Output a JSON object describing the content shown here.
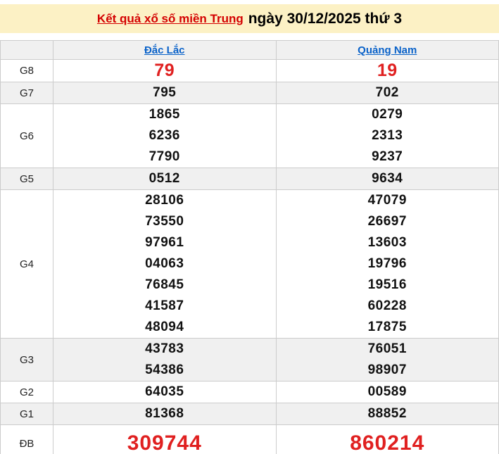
{
  "banner": {
    "link_text": "Kết quả xổ số miền Trung",
    "date_text": "ngày 30/12/2025 thứ 3"
  },
  "table": {
    "columns": [
      "Đắc Lắc",
      "Quảng Nam"
    ],
    "rows": [
      {
        "label": "G8",
        "emphasis": "high",
        "values": [
          [
            "79"
          ],
          [
            "19"
          ]
        ]
      },
      {
        "label": "G7",
        "emphasis": "normal",
        "values": [
          [
            "795"
          ],
          [
            "702"
          ]
        ]
      },
      {
        "label": "G6",
        "emphasis": "normal",
        "values": [
          [
            "1865",
            "6236",
            "7790"
          ],
          [
            "0279",
            "2313",
            "9237"
          ]
        ]
      },
      {
        "label": "G5",
        "emphasis": "normal",
        "values": [
          [
            "0512"
          ],
          [
            "9634"
          ]
        ]
      },
      {
        "label": "G4",
        "emphasis": "normal",
        "values": [
          [
            "28106",
            "73550",
            "97961",
            "04063",
            "76845",
            "41587",
            "48094"
          ],
          [
            "47079",
            "26697",
            "13603",
            "19796",
            "19516",
            "60228",
            "17875"
          ]
        ]
      },
      {
        "label": "G3",
        "emphasis": "normal",
        "values": [
          [
            "43783",
            "54386"
          ],
          [
            "76051",
            "98907"
          ]
        ]
      },
      {
        "label": "G2",
        "emphasis": "normal",
        "values": [
          [
            "64035"
          ],
          [
            "00589"
          ]
        ]
      },
      {
        "label": "G1",
        "emphasis": "normal",
        "values": [
          [
            "81368"
          ],
          [
            "88852"
          ]
        ]
      },
      {
        "label": "ĐB",
        "emphasis": "jackpot",
        "values": [
          [
            "309744"
          ],
          [
            "860214"
          ]
        ]
      }
    ]
  },
  "colors": {
    "accent_red": "#e02020",
    "link_red": "#d40000",
    "link_blue": "#0a62c9",
    "banner_bg": "#fcf1c5",
    "stripe_gray": "#f0f0f0",
    "border_gray": "#cccccc"
  }
}
